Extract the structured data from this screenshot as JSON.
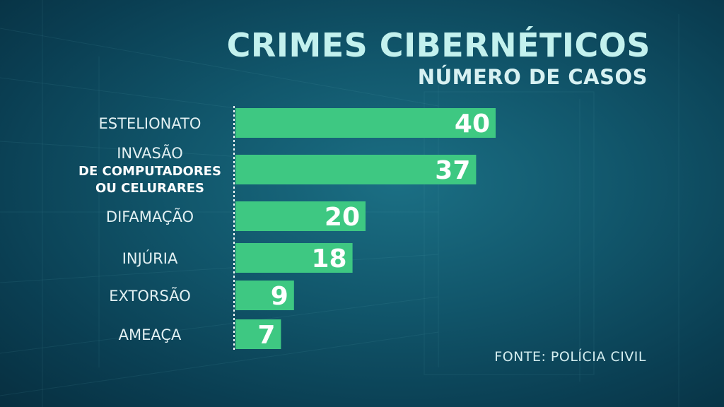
{
  "chart_data": {
    "type": "bar",
    "orientation": "horizontal",
    "title": "CRIMES CIBERNÉTICOS",
    "subtitle": "NÚMERO DE CASOS",
    "source": "FONTE: POLÍCIA CIVIL",
    "categories": [
      {
        "lines": [
          {
            "text": "ESTELIONATO",
            "bold": false
          }
        ]
      },
      {
        "lines": [
          {
            "text": "INVASÃO",
            "bold": false
          },
          {
            "text": "DE COMPUTADORES",
            "bold": true
          },
          {
            "text": "OU CELURARES",
            "bold": true
          }
        ]
      },
      {
        "lines": [
          {
            "text": "DIFAMAÇÃO",
            "bold": false
          }
        ]
      },
      {
        "lines": [
          {
            "text": "INJÚRIA",
            "bold": false
          }
        ]
      },
      {
        "lines": [
          {
            "text": "EXTORSÃO",
            "bold": false
          }
        ]
      },
      {
        "lines": [
          {
            "text": "AMEAÇA",
            "bold": false
          }
        ]
      }
    ],
    "values": [
      40,
      37,
      20,
      18,
      9,
      7
    ],
    "xlim": [
      0,
      40
    ],
    "grid": false,
    "bar_color": "#3ec882",
    "axis_color": "#ffffff"
  }
}
